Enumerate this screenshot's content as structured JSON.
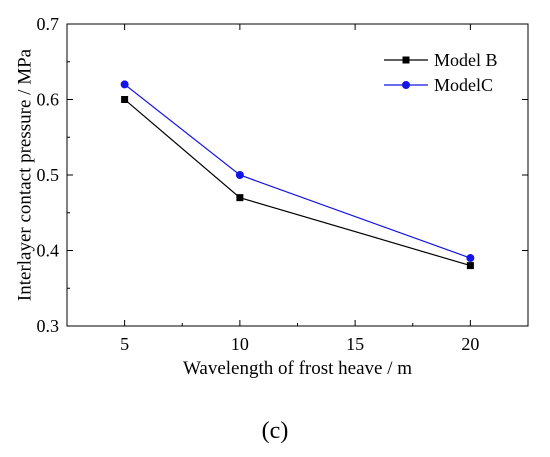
{
  "panel_label": "(c)",
  "chart_data": {
    "type": "line",
    "xlabel": "Wavelength of frost heave / m",
    "ylabel": "Interlayer contact pressure / MPa",
    "xlim": [
      2.5,
      22.5
    ],
    "ylim": [
      0.3,
      0.7
    ],
    "x_ticks": [
      5,
      10,
      15,
      20
    ],
    "y_ticks": [
      0.3,
      0.4,
      0.5,
      0.6,
      0.7
    ],
    "x_tick_labels": [
      "5",
      "10",
      "15",
      "20"
    ],
    "y_tick_labels": [
      "0.3",
      "0.4",
      "0.5",
      "0.6",
      "0.7"
    ],
    "legend_position": "top-right",
    "grid": false,
    "series": [
      {
        "name": "Model B",
        "color": "#000000",
        "marker": "square",
        "x": [
          5,
          10,
          20
        ],
        "y": [
          0.6,
          0.47,
          0.38
        ]
      },
      {
        "name": "ModelC",
        "color": "#1414e6",
        "marker": "circle",
        "x": [
          5,
          10,
          20
        ],
        "y": [
          0.62,
          0.5,
          0.39
        ]
      }
    ]
  }
}
